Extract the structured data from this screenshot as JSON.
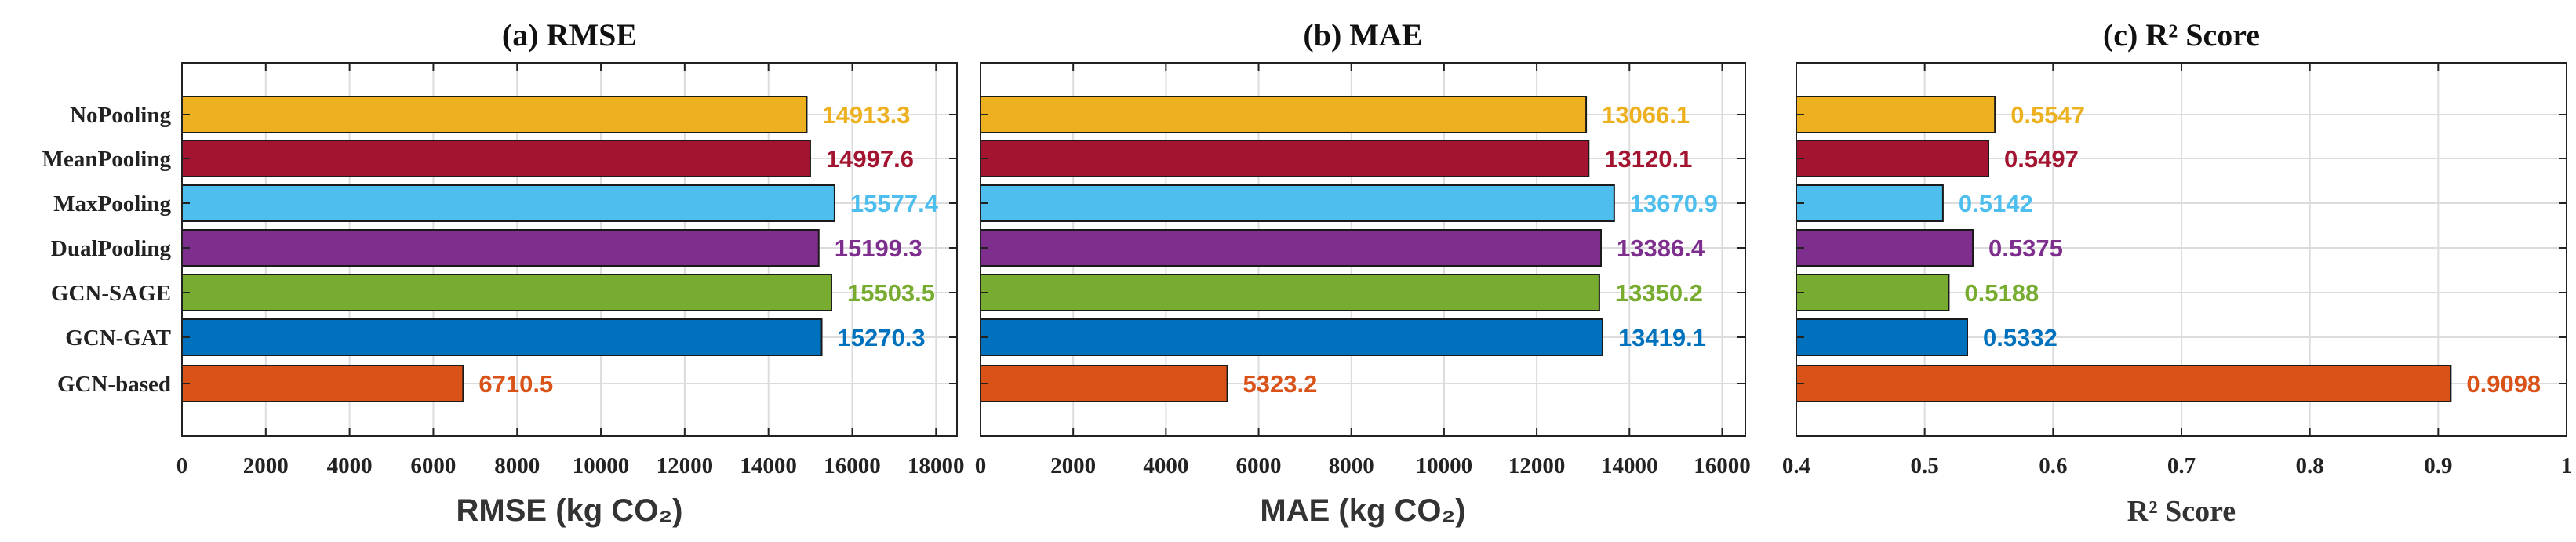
{
  "categories": [
    "NoPooling",
    "MeanPooling",
    "MaxPooling",
    "DualPooling",
    "GCN-SAGE",
    "GCN-GAT",
    "GCN-based"
  ],
  "colors": [
    "#EDB120",
    "#A2142F",
    "#4DBEEE",
    "#7E2F8E",
    "#77AC30",
    "#0072BD",
    "#D95319"
  ],
  "chart_data": [
    {
      "type": "bar",
      "orientation": "horizontal",
      "title": "(a) RMSE",
      "xlabel": "RMSE (kg CO₂)",
      "ylabel": "",
      "xlim": [
        0,
        18500
      ],
      "xticks": [
        0,
        2000,
        4000,
        6000,
        8000,
        10000,
        12000,
        14000,
        16000,
        18000
      ],
      "xtick_labels": [
        "0",
        "2000",
        "4000",
        "6000",
        "8000",
        "10000",
        "12000",
        "14000",
        "16000",
        "18000"
      ],
      "categories": [
        "NoPooling",
        "MeanPooling",
        "MaxPooling",
        "DualPooling",
        "GCN-SAGE",
        "GCN-GAT",
        "GCN-based"
      ],
      "values": [
        14913.3,
        14997.6,
        15577.4,
        15199.3,
        15503.5,
        15270.3,
        6710.5
      ],
      "value_labels": [
        "14913.3",
        "14997.6",
        "15577.4",
        "15199.3",
        "15503.5",
        "15270.3",
        "6710.5"
      ],
      "grid": true
    },
    {
      "type": "bar",
      "orientation": "horizontal",
      "title": "(b) MAE",
      "xlabel": "MAE (kg CO₂)",
      "ylabel": "",
      "xlim": [
        0,
        16500
      ],
      "xticks": [
        0,
        2000,
        4000,
        6000,
        8000,
        10000,
        12000,
        14000,
        16000
      ],
      "xtick_labels": [
        "0",
        "2000",
        "4000",
        "6000",
        "8000",
        "10000",
        "12000",
        "14000",
        "16000"
      ],
      "categories": [
        "NoPooling",
        "MeanPooling",
        "MaxPooling",
        "DualPooling",
        "GCN-SAGE",
        "GCN-GAT",
        "GCN-based"
      ],
      "values": [
        13066.1,
        13120.1,
        13670.9,
        13386.4,
        13350.2,
        13419.1,
        5323.2
      ],
      "value_labels": [
        "13066.1",
        "13120.1",
        "13670.9",
        "13386.4",
        "13350.2",
        "13419.1",
        "5323.2"
      ],
      "grid": true
    },
    {
      "type": "bar",
      "orientation": "horizontal",
      "title": "(c) R² Score",
      "xlabel": "R² Score",
      "ylabel": "",
      "xlim": [
        0.4,
        1.0
      ],
      "xticks": [
        0.4,
        0.5,
        0.6,
        0.7,
        0.8,
        0.9,
        1.0
      ],
      "xtick_labels": [
        "0.4",
        "0.5",
        "0.6",
        "0.7",
        "0.8",
        "0.9",
        "1"
      ],
      "categories": [
        "NoPooling",
        "MeanPooling",
        "MaxPooling",
        "DualPooling",
        "GCN-SAGE",
        "GCN-GAT",
        "GCN-based"
      ],
      "values": [
        0.5547,
        0.5497,
        0.5142,
        0.5375,
        0.5188,
        0.5332,
        0.9098
      ],
      "value_labels": [
        "0.5547",
        "0.5497",
        "0.5142",
        "0.5375",
        "0.5188",
        "0.5332",
        "0.9098"
      ],
      "grid": true
    }
  ]
}
